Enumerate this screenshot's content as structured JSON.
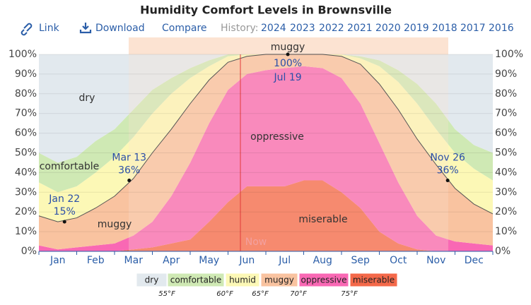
{
  "chart_data": {
    "type": "stacked-area",
    "title": "Humidity Comfort Levels in Brownsville",
    "toolbar": {
      "link": "Link",
      "download": "Download",
      "compare": "Compare",
      "history": "History:",
      "years": [
        "2024",
        "2023",
        "2022",
        "2021",
        "2020",
        "2019",
        "2018",
        "2017",
        "2016"
      ]
    },
    "categories": [
      null,
      "Jan",
      null,
      "Feb",
      null,
      "Mar",
      null,
      "Apr",
      null,
      "May",
      null,
      "Jun",
      null,
      "Jul",
      null,
      "Aug",
      null,
      "Sep",
      null,
      "Oct",
      null,
      "Nov",
      null,
      "Dec",
      null
    ],
    "series": [
      {
        "name": "dry",
        "color": "#e2e9ee",
        "values": [
          50,
          55,
          52,
          44,
          38,
          28,
          18,
          12,
          7,
          3,
          0,
          0,
          0,
          0,
          0,
          0,
          0,
          1,
          3,
          8,
          15,
          25,
          38,
          46,
          50
        ]
      },
      {
        "name": "comfortable",
        "color": "#cfe9b4",
        "values": [
          15,
          15,
          15,
          16,
          14,
          14,
          12,
          8,
          5,
          3,
          1,
          0,
          0,
          0,
          0,
          0,
          0,
          1,
          3,
          6,
          10,
          13,
          12,
          12,
          14
        ]
      },
      {
        "name": "humid",
        "color": "#fcf8b6",
        "values": [
          17,
          15,
          16,
          18,
          20,
          21,
          20,
          18,
          13,
          7,
          3,
          1,
          0,
          0,
          0,
          0,
          1,
          3,
          9,
          14,
          18,
          18,
          18,
          18,
          17
        ]
      },
      {
        "name": "muggy",
        "color": "#f9c3a0",
        "values": [
          15,
          14,
          15,
          19,
          24,
          29,
          35,
          34,
          30,
          22,
          14,
          9,
          8,
          7,
          6,
          7,
          11,
          20,
          30,
          37,
          39,
          36,
          27,
          20,
          16
        ]
      },
      {
        "name": "oppressive",
        "color": "#f968b4",
        "values": [
          3,
          1,
          2,
          3,
          4,
          7,
          13,
          24,
          39,
          50,
          57,
          57,
          59,
          60,
          58,
          57,
          58,
          53,
          45,
          31,
          17,
          8,
          5,
          4,
          3
        ]
      },
      {
        "name": "miserable",
        "color": "#f4694a",
        "values": [
          0,
          0,
          0,
          0,
          0,
          1,
          2,
          4,
          6,
          15,
          25,
          33,
          33,
          33,
          36,
          36,
          30,
          22,
          10,
          4,
          1,
          0,
          0,
          0,
          0
        ]
      }
    ],
    "ylim": [
      0,
      100
    ],
    "yticks": [
      {
        "value": 0,
        "label": "0%"
      },
      {
        "value": 10,
        "label": "10%"
      },
      {
        "value": 20,
        "label": "20%"
      },
      {
        "value": 30,
        "label": "30%"
      },
      {
        "value": 40,
        "label": "40%"
      },
      {
        "value": 50,
        "label": "50%"
      },
      {
        "value": 60,
        "label": "60%"
      },
      {
        "value": 70,
        "label": "70%"
      },
      {
        "value": 80,
        "label": "80%"
      },
      {
        "value": 90,
        "label": "90%"
      },
      {
        "value": 100,
        "label": "100%"
      }
    ],
    "grid": true,
    "annotations": [
      {
        "date": "Jan 22",
        "value": 15,
        "label": "15%"
      },
      {
        "date": "Mar 13",
        "value": 36,
        "label": "36%"
      },
      {
        "date": "Jul 19",
        "value": 100,
        "label": "100%"
      },
      {
        "date": "Nov 26",
        "value": 36,
        "label": "36%"
      }
    ],
    "now_label": "Now",
    "thresholds": [
      {
        "value": 55,
        "label": "55°F"
      },
      {
        "value": 60,
        "label": "60°F"
      },
      {
        "value": 65,
        "label": "65°F"
      },
      {
        "value": 70,
        "label": "70°F"
      },
      {
        "value": 75,
        "label": "75°F"
      }
    ]
  }
}
